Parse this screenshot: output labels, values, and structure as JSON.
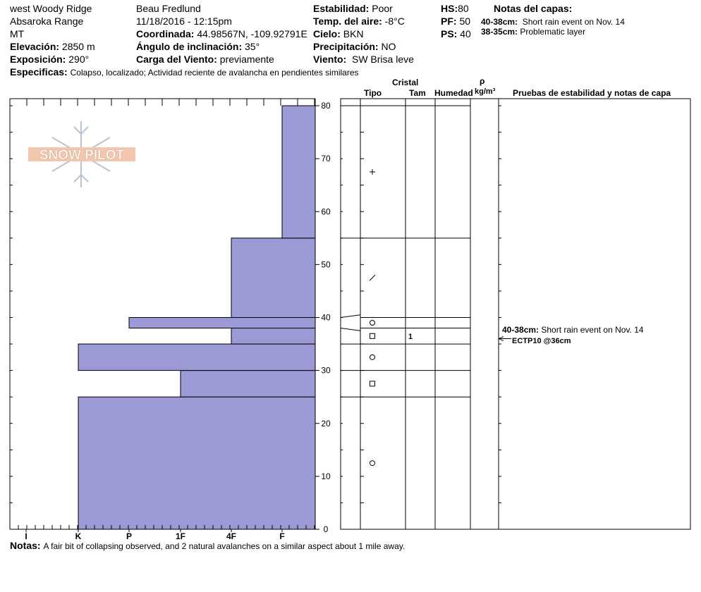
{
  "header": {
    "location": "west Woody Ridge",
    "range": "Absaroka Range",
    "state": "MT",
    "elevation_label": "Elevación:",
    "elevation": "2850 m",
    "aspect_label": "Exposición:",
    "aspect": "290°",
    "observer": "Beau  Fredlund",
    "datetime": "11/18/2016 - 12:15pm",
    "coord_label": "Coordinada:",
    "coord": "44.98567N, -109.92791E",
    "slope_label": "Ángulo de inclinación:",
    "slope": "35°",
    "wind_load_label": "Carga del Viento:",
    "wind_load": "previamente",
    "stability_label": "Estabilidad:",
    "stability": "Poor",
    "air_temp_label": "Temp. del aire:",
    "air_temp": "-8°C",
    "sky_label": "Cielo:",
    "sky": "BKN",
    "precip_label": "Precipitación:",
    "precip": "NO",
    "wind_label": "Viento:",
    "wind": "SW Brisa leve",
    "hs_label": "HS:",
    "hs": "80",
    "pf_label": "PF:",
    "pf": "50",
    "ps_label": "PS:",
    "ps": "40",
    "layer_notes_title": "Notas del capas:",
    "layer_notes": [
      {
        "depth": "40-38cm:",
        "text": "Short rain event on Nov. 14"
      },
      {
        "depth": "38-35cm:",
        "text": "Problematic layer"
      }
    ],
    "specifics_label": "Especificas:",
    "specifics": "Colapso, localizado;  Actividad reciente de avalancha en pendientes similares"
  },
  "logo_text": "SNOW PILOT",
  "columns": {
    "cristal": "Cristal",
    "tipo": "Tipo",
    "tam": "Tam",
    "humedad": "Humedad",
    "rho": "ρ",
    "density_unit": "kg/m³",
    "tests": "Pruebas de estabilidad y notas de capa"
  },
  "chart_data": {
    "type": "bar",
    "orientation": "horizontal",
    "y_axis": {
      "range": [
        0,
        80
      ],
      "ticks": [
        0,
        10,
        20,
        30,
        40,
        50,
        60,
        70,
        80
      ]
    },
    "x_axis": {
      "categories": [
        "I",
        "K",
        "P",
        "1F",
        "4F",
        "F"
      ],
      "reversed": true
    },
    "hardness_profile": [
      {
        "bottom": 0,
        "top": 25,
        "hardness": "K"
      },
      {
        "bottom": 25,
        "top": 30,
        "hardness": "1F"
      },
      {
        "bottom": 30,
        "top": 35,
        "hardness": "K"
      },
      {
        "bottom": 35,
        "top": 38,
        "hardness": "4F"
      },
      {
        "bottom": 38,
        "top": 40,
        "hardness": "P"
      },
      {
        "bottom": 40,
        "top": 55,
        "hardness": "4F"
      },
      {
        "bottom": 55,
        "top": 80,
        "hardness": "F"
      }
    ],
    "layer_boundaries": [
      80,
      55,
      40,
      38,
      35,
      30,
      25
    ],
    "grain_types": [
      {
        "y": 67.5,
        "symbol": "+"
      },
      {
        "y": 47.5,
        "symbol": "/"
      },
      {
        "y": 39,
        "symbol": "○"
      },
      {
        "y": 36.5,
        "symbol": "□",
        "size": "1"
      },
      {
        "y": 32.5,
        "symbol": "○"
      },
      {
        "y": 27.5,
        "symbol": "□"
      },
      {
        "y": 12.5,
        "symbol": "○"
      }
    ],
    "layer_note": {
      "y": 38,
      "depth": "40-38cm:",
      "text": "Short rain event on Nov. 14"
    },
    "stability_test": {
      "y": 36,
      "text": "ECTP10 @36cm"
    }
  },
  "notes_label": "Notas:",
  "notes": "A fair bit of collapsing observed, and 2 natural avalanches on a similar aspect about 1 mile away.",
  "colors": {
    "bar": "#9b99d6",
    "bar_edge": "#000000"
  }
}
